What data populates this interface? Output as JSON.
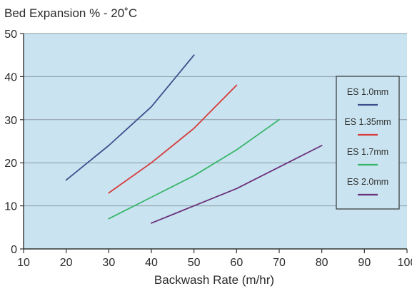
{
  "chart_data": {
    "type": "line",
    "title": "Bed Expansion %  -  20˚C",
    "xlabel": "Backwash Rate (m/hr)",
    "ylabel": "",
    "xlim": [
      10,
      100
    ],
    "ylim": [
      0,
      50
    ],
    "x_ticks": [
      "10",
      "20",
      "30",
      "40",
      "50",
      "60",
      "70",
      "80",
      "90",
      "100"
    ],
    "y_ticks": [
      "0",
      "10",
      "20",
      "30",
      "40",
      "50"
    ],
    "grid": "horizontal",
    "legend_position": "right",
    "plot_background": "#c9e4f0",
    "series": [
      {
        "name": "ES 1.0mm",
        "color": "#3e4e8c",
        "points": [
          [
            20,
            16
          ],
          [
            30,
            24
          ],
          [
            40,
            33
          ],
          [
            50,
            45
          ]
        ]
      },
      {
        "name": "ES 1.35mm",
        "color": "#d63a3a",
        "points": [
          [
            30,
            13
          ],
          [
            40,
            20
          ],
          [
            50,
            28
          ],
          [
            60,
            38
          ]
        ]
      },
      {
        "name": "ES 1.7mm",
        "color": "#38b56a",
        "points": [
          [
            30,
            7
          ],
          [
            40,
            12
          ],
          [
            50,
            17
          ],
          [
            60,
            23
          ],
          [
            70,
            30
          ]
        ]
      },
      {
        "name": "ES 2.0mm",
        "color": "#6a2f7a",
        "points": [
          [
            40,
            6
          ],
          [
            50,
            10
          ],
          [
            60,
            14
          ],
          [
            70,
            19
          ],
          [
            80,
            24
          ]
        ]
      }
    ]
  }
}
